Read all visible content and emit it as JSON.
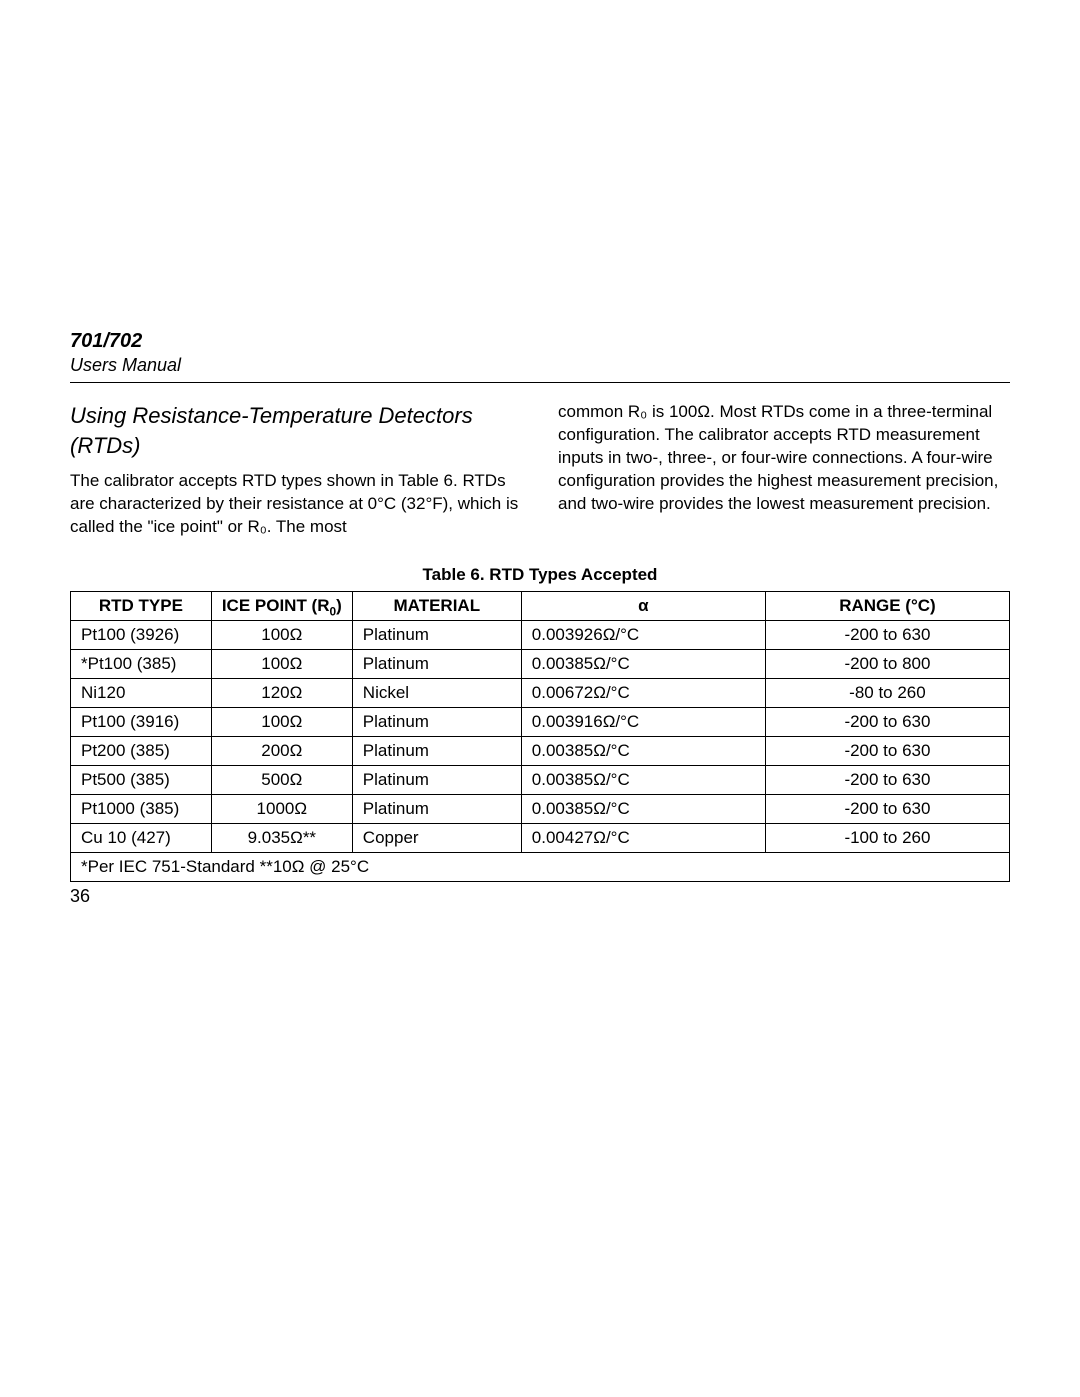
{
  "header": {
    "model": "701/702",
    "subtitle": "Users Manual"
  },
  "section": {
    "title": "Using Resistance-Temperature Detectors (RTDs)",
    "leftPara": "The calibrator accepts RTD types shown in Table 6. RTDs are characterized by their resistance at 0°C (32°F), which is called the \"ice point\" or R₀. The most",
    "rightPara": "common R₀ is 100Ω. Most RTDs come in a three-terminal configuration. The calibrator accepts RTD measurement inputs in two-, three-, or four-wire connections. A four-wire configuration provides the highest measurement precision, and two-wire provides the lowest measurement precision."
  },
  "table": {
    "title": "Table 6. RTD Types Accepted",
    "headers": {
      "c0": "RTD TYPE",
      "c1_prefix": "ICE POINT (R",
      "c1_suffix": ")",
      "c2": "MATERIAL",
      "c3": "α",
      "c4": "RANGE (°C)"
    },
    "rows": [
      {
        "c0": "Pt100 (3926)",
        "c1": "100Ω",
        "c2": "Platinum",
        "c3": "0.003926Ω/°C",
        "c4": "-200 to 630"
      },
      {
        "c0": "*Pt100 (385)",
        "c1": "100Ω",
        "c2": "Platinum",
        "c3": "0.00385Ω/°C",
        "c4": "-200 to 800"
      },
      {
        "c0": "Ni120",
        "c1": "120Ω",
        "c2": "Nickel",
        "c3": "0.00672Ω/°C",
        "c4": "-80 to 260"
      },
      {
        "c0": "Pt100 (3916)",
        "c1": "100Ω",
        "c2": "Platinum",
        "c3": "0.003916Ω/°C",
        "c4": "-200 to 630"
      },
      {
        "c0": "Pt200 (385)",
        "c1": "200Ω",
        "c2": "Platinum",
        "c3": "0.00385Ω/°C",
        "c4": "-200 to 630"
      },
      {
        "c0": "Pt500 (385)",
        "c1": "500Ω",
        "c2": "Platinum",
        "c3": "0.00385Ω/°C",
        "c4": "-200 to 630"
      },
      {
        "c0": "Pt1000 (385)",
        "c1": "1000Ω",
        "c2": "Platinum",
        "c3": "0.00385Ω/°C",
        "c4": "-200 to 630"
      },
      {
        "c0": "Cu 10 (427)",
        "c1": "9.035Ω**",
        "c2": "Copper",
        "c3": "0.00427Ω/°C",
        "c4": "-100 to 260"
      }
    ],
    "footnote": "*Per IEC 751-Standard       **10Ω @ 25°C",
    "colWidths": [
      "15%",
      "15%",
      "18%",
      "26%",
      "26%"
    ]
  },
  "pageNumber": "36"
}
